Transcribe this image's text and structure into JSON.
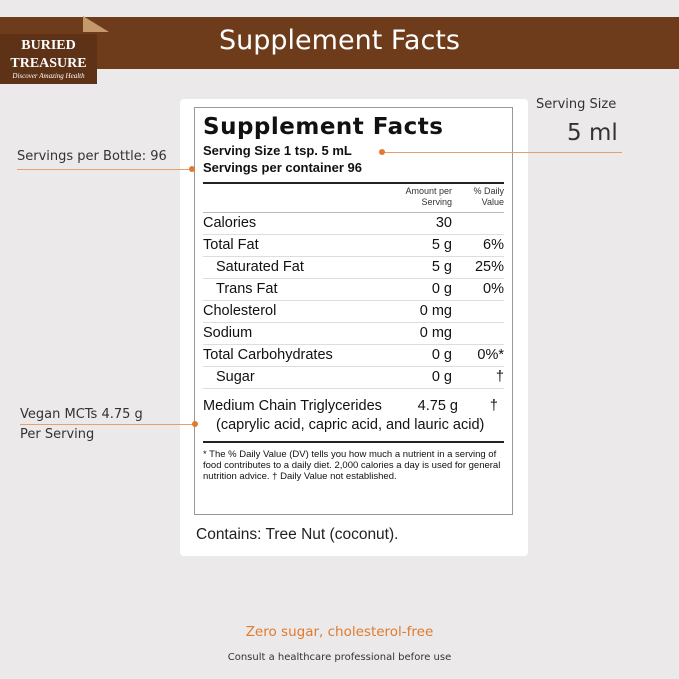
{
  "banner": {
    "title": "Supplement Facts",
    "logo": [
      "BURIED",
      "TREASURE",
      "Discover Amazing Health"
    ]
  },
  "label": {
    "title": "Supplement Facts",
    "serving_size": "Serving Size 1 tsp. 5 mL",
    "servings": "Servings per container 96",
    "col_amount": [
      "Amount per",
      "Serving"
    ],
    "col_dv": [
      "% Daily",
      "Value"
    ],
    "rows": [
      {
        "name": "Calories",
        "amount": "30",
        "dv": ""
      },
      {
        "name": "Total Fat",
        "amount": "5 g",
        "dv": "6%"
      },
      {
        "name": "Saturated Fat",
        "amount": "5 g",
        "dv": "25%"
      },
      {
        "name": "Trans Fat",
        "amount": "0 g",
        "dv": "0%"
      },
      {
        "name": "Cholesterol",
        "amount": "0 mg",
        "dv": ""
      },
      {
        "name": "Sodium",
        "amount": "0 mg",
        "dv": ""
      },
      {
        "name": "Total Carbohydrates",
        "amount": "0 g",
        "dv": "0%*"
      },
      {
        "name": "Sugar",
        "amount": "0 g",
        "dv": "†"
      }
    ],
    "mct": {
      "name": "Medium Chain Triglycerides",
      "amount": "4.75 g",
      "dv": "†",
      "sub": "(caprylic acid, capric acid, and lauric acid)"
    },
    "footnote": "* The % Daily Value (DV) tells you how much a nutrient in a serving of food contributes to a daily diet. 2,000 calories a day is used for general nutrition advice.   † Daily Value not established."
  },
  "contains": "Contains: Tree Nut (coconut).",
  "callouts": {
    "serving_size_label": "Serving Size",
    "serving_size_value": "5 ml",
    "servings": "Servings per Bottle: 96",
    "vegan": [
      "Vegan MCTs 4.75 g",
      "Per Serving"
    ]
  },
  "tagline": "Zero sugar, cholesterol-free",
  "disclaimer": "Consult a healthcare professional before use",
  "colors": {
    "banner": "#6e3c1b",
    "accent": "#e07a2e"
  }
}
